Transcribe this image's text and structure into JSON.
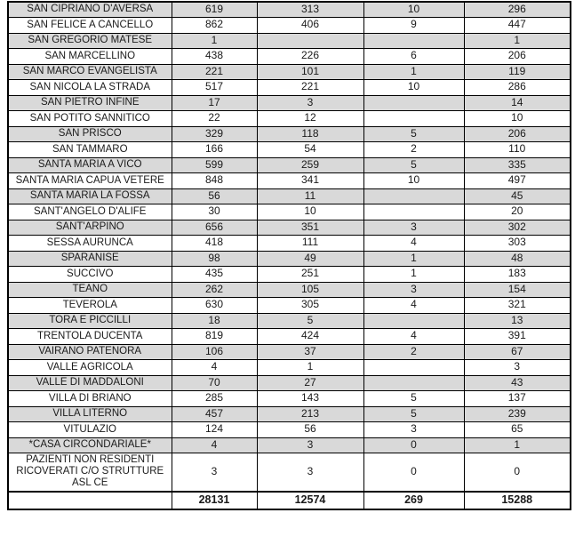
{
  "colors": {
    "row_shade": "#d9d9d9",
    "border": "#000000",
    "text": "#1a1a1a"
  },
  "table": {
    "rows": [
      {
        "name": "SAN CIPRIANO D'AVERSA",
        "values": [
          "619",
          "313",
          "10",
          "296"
        ]
      },
      {
        "name": "SAN FELICE A CANCELLO",
        "values": [
          "862",
          "406",
          "9",
          "447"
        ]
      },
      {
        "name": "SAN GREGORIO MATESE",
        "values": [
          "1",
          "",
          "",
          "1"
        ]
      },
      {
        "name": "SAN MARCELLINO",
        "values": [
          "438",
          "226",
          "6",
          "206"
        ]
      },
      {
        "name": "SAN MARCO EVANGELISTA",
        "values": [
          "221",
          "101",
          "1",
          "119"
        ]
      },
      {
        "name": "SAN NICOLA LA STRADA",
        "values": [
          "517",
          "221",
          "10",
          "286"
        ]
      },
      {
        "name": "SAN PIETRO INFINE",
        "values": [
          "17",
          "3",
          "",
          "14"
        ]
      },
      {
        "name": "SAN POTITO SANNITICO",
        "values": [
          "22",
          "12",
          "",
          "10"
        ]
      },
      {
        "name": "SAN PRISCO",
        "values": [
          "329",
          "118",
          "5",
          "206"
        ]
      },
      {
        "name": "SAN TAMMARO",
        "values": [
          "166",
          "54",
          "2",
          "110"
        ]
      },
      {
        "name": "SANTA MARIA A VICO",
        "values": [
          "599",
          "259",
          "5",
          "335"
        ]
      },
      {
        "name": "SANTA MARIA CAPUA VETERE",
        "values": [
          "848",
          "341",
          "10",
          "497"
        ]
      },
      {
        "name": "SANTA MARIA LA FOSSA",
        "values": [
          "56",
          "11",
          "",
          "45"
        ]
      },
      {
        "name": "SANT'ANGELO D'ALIFE",
        "values": [
          "30",
          "10",
          "",
          "20"
        ]
      },
      {
        "name": "SANT'ARPINO",
        "values": [
          "656",
          "351",
          "3",
          "302"
        ]
      },
      {
        "name": "SESSA AURUNCA",
        "values": [
          "418",
          "111",
          "4",
          "303"
        ]
      },
      {
        "name": "SPARANISE",
        "values": [
          "98",
          "49",
          "1",
          "48"
        ]
      },
      {
        "name": "SUCCIVO",
        "values": [
          "435",
          "251",
          "1",
          "183"
        ]
      },
      {
        "name": "TEANO",
        "values": [
          "262",
          "105",
          "3",
          "154"
        ]
      },
      {
        "name": "TEVEROLA",
        "values": [
          "630",
          "305",
          "4",
          "321"
        ]
      },
      {
        "name": "TORA E PICCILLI",
        "values": [
          "18",
          "5",
          "",
          "13"
        ]
      },
      {
        "name": "TRENTOLA DUCENTA",
        "values": [
          "819",
          "424",
          "4",
          "391"
        ]
      },
      {
        "name": "VAIRANO PATENORA",
        "values": [
          "106",
          "37",
          "2",
          "67"
        ]
      },
      {
        "name": "VALLE AGRICOLA",
        "values": [
          "4",
          "1",
          "",
          "3"
        ]
      },
      {
        "name": "VALLE DI MADDALONI",
        "values": [
          "70",
          "27",
          "",
          "43"
        ]
      },
      {
        "name": "VILLA DI BRIANO",
        "values": [
          "285",
          "143",
          "5",
          "137"
        ]
      },
      {
        "name": "VILLA LITERNO",
        "values": [
          "457",
          "213",
          "5",
          "239"
        ]
      },
      {
        "name": "VITULAZIO",
        "values": [
          "124",
          "56",
          "3",
          "65"
        ]
      },
      {
        "name": "*CASA CIRCONDARIALE*",
        "values": [
          "4",
          "3",
          "0",
          "1"
        ]
      },
      {
        "name": "PAZIENTI NON RESIDENTI RICOVERATI C/O STRUTTURE ASL CE",
        "values": [
          "3",
          "3",
          "0",
          "0"
        ]
      }
    ],
    "totals": {
      "label": "",
      "values": [
        "28131",
        "12574",
        "269",
        "15288"
      ]
    }
  }
}
